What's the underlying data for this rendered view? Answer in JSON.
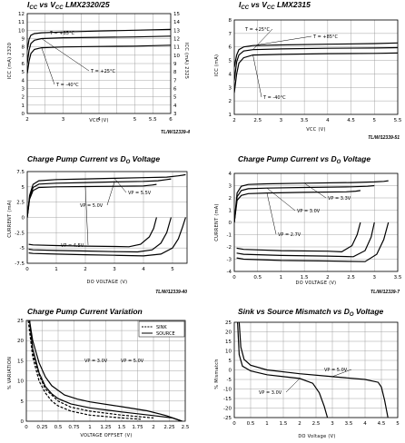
{
  "chart_data": [
    {
      "type": "line",
      "title": "ICC vs VCC LMX2320/25",
      "title_parts": [
        "I",
        "CC",
        " vs V",
        "CC",
        " LMX2320/25"
      ],
      "ylabel": "ICC (mA) 2320",
      "ylabel_right": "ICC (mA) 2325",
      "xlabel": "VCC (V)",
      "xlim": [
        2,
        6
      ],
      "ylim": [
        0,
        12
      ],
      "ylim_right": [
        3,
        15
      ],
      "xticks": [
        2,
        2.5,
        3,
        3.5,
        4,
        4.5,
        5,
        5.5,
        6
      ],
      "xtick_labels": [
        "2",
        "",
        "3",
        "",
        "4",
        "",
        "5",
        "5.5",
        "6"
      ],
      "yticks": [
        0,
        1,
        2,
        3,
        4,
        5,
        6,
        7,
        8,
        9,
        10,
        11,
        12
      ],
      "yticks_right": [
        3,
        4,
        5,
        6,
        7,
        8,
        9,
        10,
        11,
        12,
        13,
        14,
        15
      ],
      "ref": "TL/W/12339-4",
      "grid": true,
      "series": [
        {
          "name": "T = +85°C",
          "x": [
            2.0,
            2.05,
            2.1,
            2.2,
            2.4,
            3,
            4,
            5,
            6
          ],
          "y": [
            7.6,
            8.9,
            9.4,
            9.6,
            9.7,
            9.8,
            9.9,
            10.0,
            10.1
          ]
        },
        {
          "name": "T = +25°C",
          "x": [
            2.0,
            2.05,
            2.1,
            2.2,
            2.4,
            3,
            4,
            5,
            6
          ],
          "y": [
            6.0,
            7.6,
            8.4,
            8.8,
            9.0,
            9.1,
            9.15,
            9.2,
            9.3
          ]
        },
        {
          "name": "T = -40°C",
          "x": [
            2.0,
            2.05,
            2.1,
            2.2,
            2.4,
            3,
            4,
            5,
            6
          ],
          "y": [
            4.8,
            6.3,
            7.2,
            7.7,
            7.9,
            8.0,
            8.05,
            8.1,
            8.2
          ]
        }
      ],
      "annotations": [
        {
          "text": "T = +85°C",
          "series": 0
        },
        {
          "text": "T = +25°C",
          "series": 1
        },
        {
          "text": "T = -40°C",
          "series": 2
        }
      ]
    },
    {
      "type": "line",
      "title": "ICC vs VCC LMX2315",
      "title_parts": [
        "I",
        "CC",
        " vs V",
        "CC",
        " LMX2315"
      ],
      "ylabel": "ICC (mA)",
      "xlabel": "VCC (V)",
      "xlim": [
        2,
        5.5
      ],
      "ylim": [
        1,
        8
      ],
      "xticks": [
        2,
        2.5,
        3,
        3.5,
        4,
        4.5,
        5,
        5.5
      ],
      "xtick_labels": [
        "2",
        "2.5",
        "3",
        "3.5",
        "4",
        "4.5",
        "5",
        "5.5"
      ],
      "yticks": [
        1,
        2,
        3,
        4,
        5,
        6,
        7,
        8
      ],
      "ref": "TL/W/12339-51",
      "grid": true,
      "series": [
        {
          "name": "T = +85°C",
          "x": [
            2.0,
            2.05,
            2.1,
            2.2,
            2.4,
            3,
            4,
            5,
            5.5
          ],
          "y": [
            4.5,
            5.4,
            5.8,
            6.0,
            6.1,
            6.15,
            6.2,
            6.25,
            6.3
          ]
        },
        {
          "name": "T = +25°C",
          "x": [
            2.0,
            2.05,
            2.1,
            2.2,
            2.4,
            3,
            4,
            5,
            5.5
          ],
          "y": [
            3.5,
            4.9,
            5.4,
            5.7,
            5.8,
            5.85,
            5.9,
            5.92,
            5.95
          ]
        },
        {
          "name": "T = -40°C",
          "x": [
            2.0,
            2.05,
            2.1,
            2.2,
            2.4,
            3,
            4,
            5,
            5.5
          ],
          "y": [
            2.6,
            4.0,
            4.8,
            5.2,
            5.4,
            5.45,
            5.5,
            5.52,
            5.55
          ]
        }
      ],
      "annotations": [
        {
          "text": "T = +85°C",
          "series": 0
        },
        {
          "text": "T = +25°C",
          "series": 1
        },
        {
          "text": "T = -40°C",
          "series": 2
        }
      ]
    },
    {
      "type": "line",
      "title": "Charge Pump Current vs DO Voltage",
      "title_parts": [
        "Charge Pump Current vs D",
        "O",
        " Voltage"
      ],
      "ylabel": "CURRENT (mA)",
      "xlabel": "DO VOLTAGE (V)",
      "xlim": [
        0,
        5.5
      ],
      "ylim": [
        -7.5,
        7.5
      ],
      "xticks": [
        0,
        1,
        2,
        3,
        4,
        5
      ],
      "yticks": [
        -7.5,
        -5,
        -2.5,
        0,
        2.5,
        5,
        7.5
      ],
      "ref": "TL/W/12339-40",
      "grid": true,
      "series": [
        {
          "name": "VP = 5.5V source",
          "x": [
            0,
            0.08,
            0.2,
            0.4,
            1,
            2,
            3,
            4,
            4.8,
            5.2,
            5.35,
            5.45
          ],
          "y": [
            0,
            3.6,
            5.4,
            6.0,
            6.2,
            6.3,
            6.4,
            6.5,
            6.6,
            6.8,
            6.9,
            7.0
          ]
        },
        {
          "name": "VP = 5.0V source",
          "x": [
            0,
            0.08,
            0.2,
            0.4,
            1,
            2,
            3,
            4,
            4.5,
            4.8,
            4.95
          ],
          "y": [
            0,
            3.3,
            4.9,
            5.45,
            5.6,
            5.7,
            5.8,
            5.9,
            6.0,
            6.2,
            6.3
          ]
        },
        {
          "name": "VP = 4.5V source",
          "x": [
            0,
            0.08,
            0.2,
            0.4,
            1,
            2,
            3,
            4,
            4.3,
            4.45
          ],
          "y": [
            0,
            3.0,
            4.4,
            4.9,
            5.0,
            5.05,
            5.1,
            5.15,
            5.3,
            5.4
          ]
        },
        {
          "name": "VP = 5.5V sink",
          "x": [
            0.05,
            0.2,
            1,
            2,
            3,
            4,
            4.6,
            5,
            5.2,
            5.35,
            5.45
          ],
          "y": [
            -5.8,
            -5.9,
            -6.0,
            -6.1,
            -6.2,
            -6.3,
            -6.0,
            -5.0,
            -3.5,
            -1.5,
            0
          ]
        },
        {
          "name": "VP = 5.0V sink",
          "x": [
            0.05,
            0.2,
            1,
            2,
            3,
            3.8,
            4.3,
            4.6,
            4.8,
            4.95
          ],
          "y": [
            -5.2,
            -5.3,
            -5.4,
            -5.5,
            -5.6,
            -5.65,
            -5.3,
            -4.2,
            -2.5,
            0
          ]
        },
        {
          "name": "VP = 4.5V sink",
          "x": [
            0.05,
            0.2,
            1,
            2,
            3,
            3.5,
            3.9,
            4.2,
            4.35,
            4.45
          ],
          "y": [
            -4.4,
            -4.5,
            -4.6,
            -4.7,
            -4.75,
            -4.8,
            -4.4,
            -3.2,
            -1.8,
            0
          ]
        }
      ],
      "annotations": [
        {
          "text": "VP = 5.5V",
          "series": 0
        },
        {
          "text": "VP = 5.0V",
          "series": 1
        },
        {
          "text": "VP = 4.5V",
          "series": 2
        }
      ]
    },
    {
      "type": "line",
      "title": "Charge Pump Current vs DO Voltage",
      "title_parts": [
        "Charge Pump Current vs D",
        "O",
        " Voltage"
      ],
      "ylabel": "CURRENT (mA)",
      "xlabel": "DO VOLTAGE (V)",
      "xlim": [
        0,
        3.5
      ],
      "ylim": [
        -4,
        4
      ],
      "xticks": [
        0,
        0.5,
        1,
        1.5,
        2,
        2.5,
        3,
        3.5
      ],
      "yticks": [
        -4,
        -3,
        -2,
        -1,
        0,
        1,
        2,
        3,
        4
      ],
      "ref": "TL/W/12339-7",
      "grid": true,
      "series": [
        {
          "name": "VP = 3.3V source",
          "x": [
            0,
            0.06,
            0.15,
            0.3,
            0.7,
            1.5,
            2.5,
            3.0,
            3.2,
            3.3
          ],
          "y": [
            0,
            2.4,
            2.95,
            3.1,
            3.15,
            3.2,
            3.25,
            3.3,
            3.35,
            3.4
          ]
        },
        {
          "name": "VP = 3.0V source",
          "x": [
            0,
            0.06,
            0.15,
            0.3,
            0.7,
            1.5,
            2.5,
            2.85,
            3.0
          ],
          "y": [
            0,
            2.1,
            2.6,
            2.75,
            2.8,
            2.85,
            2.9,
            2.95,
            3.0
          ]
        },
        {
          "name": "VP = 2.7V source",
          "x": [
            0,
            0.06,
            0.15,
            0.3,
            0.7,
            1.5,
            2.4,
            2.6,
            2.7
          ],
          "y": [
            0,
            1.8,
            2.2,
            2.35,
            2.4,
            2.45,
            2.5,
            2.55,
            2.6
          ]
        },
        {
          "name": "VP = 3.3V sink",
          "x": [
            0.05,
            0.2,
            1,
            2,
            2.8,
            3.05,
            3.2,
            3.3
          ],
          "y": [
            -2.9,
            -3.0,
            -3.1,
            -3.15,
            -3.2,
            -2.6,
            -1.4,
            0
          ]
        },
        {
          "name": "VP = 3.0V sink",
          "x": [
            0.05,
            0.2,
            1,
            2,
            2.55,
            2.8,
            2.93,
            3.0
          ],
          "y": [
            -2.5,
            -2.6,
            -2.7,
            -2.75,
            -2.8,
            -2.3,
            -1.2,
            0
          ]
        },
        {
          "name": "VP = 2.7V sink",
          "x": [
            0.05,
            0.2,
            1,
            2,
            2.3,
            2.52,
            2.63,
            2.7
          ],
          "y": [
            -2.1,
            -2.2,
            -2.3,
            -2.35,
            -2.4,
            -1.9,
            -1.0,
            0
          ]
        }
      ],
      "annotations": [
        {
          "text": "VP = 3.3V",
          "series": 0
        },
        {
          "text": "VP = 3.0V",
          "series": 1
        },
        {
          "text": "VP = 2.7V",
          "series": 2
        }
      ]
    },
    {
      "type": "line",
      "title": "Charge Pump Current Variation",
      "ylabel": "% VARIATION",
      "xlabel": "VOLTAGE OFFSET (V)",
      "xlim": [
        0,
        2.5
      ],
      "ylim": [
        0,
        25
      ],
      "xticks": [
        0,
        0.25,
        0.5,
        0.75,
        1,
        1.25,
        1.5,
        1.75,
        2,
        2.25,
        2.5
      ],
      "xtick_labels": [
        "0",
        "0.25",
        "0.5",
        "0.75",
        "1",
        "1.25",
        "1.5",
        "1.75",
        "2",
        "2.25",
        "2.5"
      ],
      "yticks": [
        0,
        2.5,
        5,
        7.5,
        10,
        12.5,
        15,
        17.5,
        20,
        22.5,
        25
      ],
      "yticklabels": [
        "0",
        "",
        "5",
        "",
        "10",
        "",
        "15",
        "",
        "20",
        "",
        "25"
      ],
      "grid": true,
      "legend": [
        {
          "label": "SINK",
          "dash": true
        },
        {
          "label": "SOURCE",
          "dash": false
        }
      ],
      "legend_position": "top-right",
      "series": [
        {
          "name": "VP = 3.0V SOURCE",
          "x": [
            0.05,
            0.1,
            0.2,
            0.3,
            0.4,
            0.5,
            0.7,
            1.0,
            1.5,
            2.0,
            2.3,
            2.45
          ],
          "y": [
            25,
            18,
            12,
            8.6,
            6.8,
            5.6,
            4.3,
            3.3,
            2.3,
            1.4,
            0.8,
            0
          ]
        },
        {
          "name": "VP = 5.0V SOURCE",
          "x": [
            0.05,
            0.1,
            0.2,
            0.3,
            0.4,
            0.6,
            0.8,
            1.0,
            1.5,
            1.9,
            2.2,
            2.45
          ],
          "y": [
            25,
            20,
            14.5,
            11,
            8.8,
            6.5,
            5.5,
            4.8,
            3.6,
            2.6,
            1.4,
            0
          ]
        },
        {
          "name": "VP = 3.0V SINK",
          "x": [
            0.03,
            0.1,
            0.2,
            0.3,
            0.4,
            0.5,
            0.7,
            1.0,
            1.5,
            1.8
          ],
          "y": [
            25,
            16,
            10,
            7,
            5,
            3.8,
            2.5,
            1.5,
            0.8,
            0.5
          ]
        },
        {
          "name": "VP = 5.0V SINK",
          "x": [
            0.05,
            0.1,
            0.2,
            0.3,
            0.5,
            0.7,
            1.0,
            1.5,
            2.0
          ],
          "y": [
            25,
            17,
            11.5,
            8,
            5,
            3.5,
            2.5,
            1.5,
            0.8
          ]
        }
      ],
      "annotations": [
        {
          "text": "VP = 3.0V"
        },
        {
          "text": "VP = 5.0V"
        }
      ]
    },
    {
      "type": "line",
      "title": "Sink vs Source Mismatch vs DO Voltage",
      "title_parts": [
        "Sink vs Source Mismatch vs D",
        "O",
        " Voltage"
      ],
      "ylabel": "% Mismatch",
      "xlabel": "DO Voltage (V)",
      "xlim": [
        0,
        5
      ],
      "ylim": [
        -25,
        25
      ],
      "xticks": [
        0,
        0.5,
        1,
        1.5,
        2,
        2.5,
        3,
        3.5,
        4,
        4.5,
        5
      ],
      "xtick_labels": [
        "0",
        "0.5",
        "1",
        "1.5",
        "2",
        "2.5",
        "3",
        "3.5",
        "4",
        "4.5",
        "5"
      ],
      "yticks": [
        -25,
        -20,
        -15,
        -10,
        -5,
        0,
        5,
        10,
        15,
        20,
        25
      ],
      "grid": true,
      "series": [
        {
          "name": "VP = 5.0V",
          "x": [
            0.15,
            0.2,
            0.3,
            0.5,
            1,
            2,
            3,
            4,
            4.4,
            4.5,
            4.6,
            4.7
          ],
          "y": [
            25,
            12,
            5.5,
            2.5,
            0,
            -2,
            -3.5,
            -5,
            -6.5,
            -9,
            -16,
            -25
          ]
        },
        {
          "name": "VP = 3.0V",
          "x": [
            0.1,
            0.15,
            0.25,
            0.5,
            1,
            1.5,
            2,
            2.4,
            2.6,
            2.75,
            2.85
          ],
          "y": [
            25,
            8,
            2,
            -0.5,
            -2.5,
            -3.5,
            -4.5,
            -7,
            -12,
            -19,
            -25
          ]
        }
      ],
      "annotations": [
        {
          "text": "VP = 5.0V",
          "series": 0
        },
        {
          "text": "VP = 3.0V",
          "series": 1
        }
      ]
    }
  ]
}
